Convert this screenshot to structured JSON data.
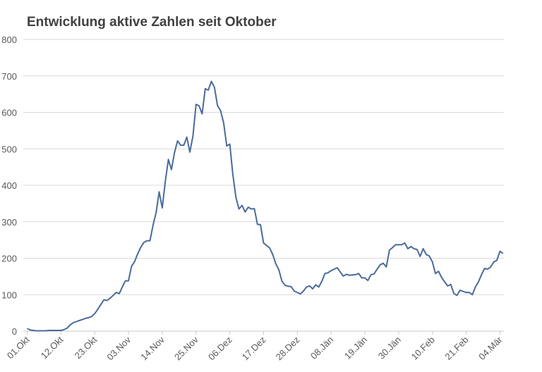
{
  "chart_data": {
    "type": "line",
    "title": "Entwicklung aktive Zahlen seit Oktober",
    "xlabel": "",
    "ylabel": "",
    "ylim": [
      0,
      800
    ],
    "y_ticks": [
      0,
      100,
      200,
      300,
      400,
      500,
      600,
      700,
      800
    ],
    "x_tick_labels": [
      "01.Okt",
      "12.Okt",
      "23.Okt",
      "03.Nov",
      "14.Nov",
      "25.Nov",
      "06.Dez",
      "17.Dez",
      "28.Dez",
      "08.Jän",
      "19.Jän",
      "30.Jän",
      "10.Feb",
      "21.Feb",
      "04.Mär"
    ],
    "x_tick_interval_days": 11,
    "x_start": "01.Okt",
    "x_end": "05.Mär",
    "grid": "horizontal",
    "legend": "none",
    "series": [
      {
        "color": "#4a6b9a",
        "values": [
          7,
          3,
          2,
          1,
          1,
          1,
          1,
          2,
          2,
          2,
          2,
          2,
          4,
          8,
          17,
          23,
          26,
          29,
          32,
          35,
          37,
          40,
          48,
          60,
          73,
          86,
          84,
          90,
          98,
          106,
          103,
          121,
          138,
          138,
          178,
          191,
          212,
          230,
          243,
          248,
          248,
          290,
          325,
          382,
          338,
          410,
          471,
          443,
          490,
          522,
          510,
          510,
          532,
          491,
          535,
          622,
          618,
          596,
          665,
          661,
          685,
          669,
          619,
          605,
          571,
          508,
          513,
          430,
          367,
          335,
          345,
          327,
          340,
          335,
          336,
          293,
          292,
          242,
          235,
          228,
          210,
          185,
          168,
          137,
          126,
          123,
          122,
          110,
          106,
          102,
          110,
          121,
          124,
          116,
          127,
          121,
          137,
          158,
          160,
          166,
          170,
          174,
          162,
          151,
          156,
          153,
          154,
          155,
          158,
          146,
          146,
          139,
          155,
          157,
          170,
          182,
          186,
          176,
          222,
          229,
          237,
          237,
          237,
          242,
          226,
          232,
          226,
          224,
          205,
          226,
          210,
          206,
          190,
          158,
          164,
          147,
          135,
          124,
          128,
          103,
          98,
          112,
          109,
          106,
          106,
          100,
          121,
          135,
          155,
          172,
          170,
          176,
          190,
          194,
          219,
          213
        ]
      }
    ]
  }
}
